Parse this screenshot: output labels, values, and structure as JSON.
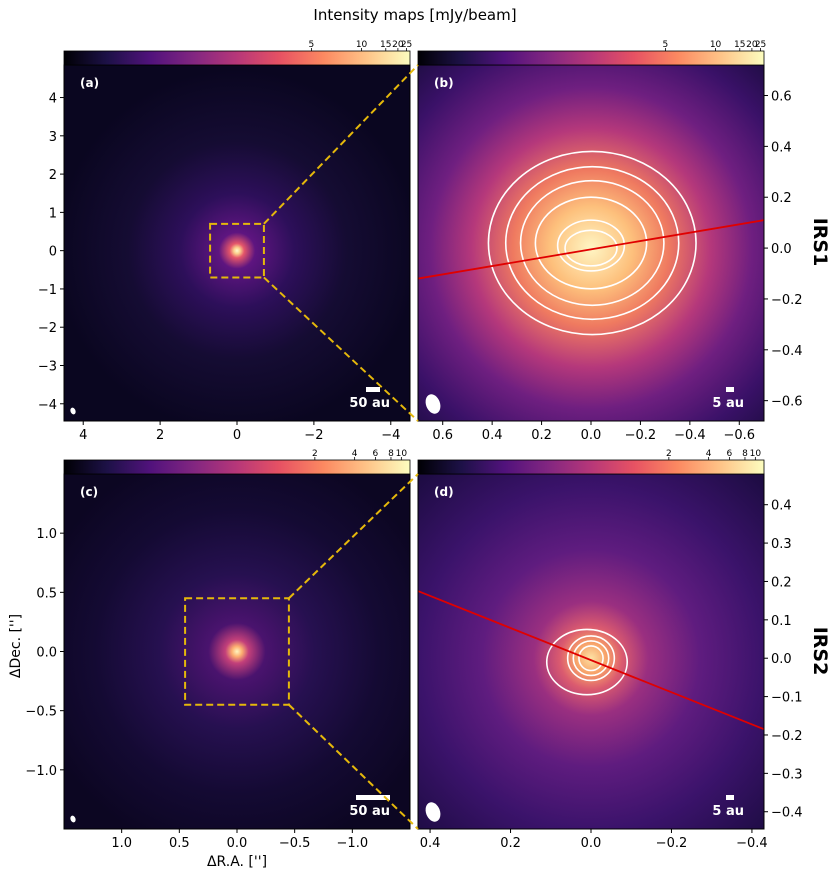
{
  "figure": {
    "title": "Intensity maps [mJy/beam]",
    "xlabel": "ΔR.A. ['']",
    "ylabel": "ΔDec. ['']",
    "row_labels": [
      "IRS1",
      "IRS2"
    ]
  },
  "colormap": {
    "name": "magma",
    "stops": [
      "#000004",
      "#1d1147",
      "#51127c",
      "#822681",
      "#b73779",
      "#e75263",
      "#fc8961",
      "#fec488",
      "#fcfdbf"
    ]
  },
  "chart_data": [
    {
      "id": "a",
      "type": "heatmap",
      "label": "(a)",
      "xlim": [
        4.5,
        -4.5
      ],
      "ylim": [
        -4.45,
        4.85
      ],
      "xticks": [
        4,
        2,
        0,
        -2,
        -4
      ],
      "xtick_labels": [
        "4",
        "2",
        "0",
        "−2",
        "−4"
      ],
      "yticks": [
        4,
        3,
        2,
        1,
        0,
        -1,
        -2,
        -3,
        -4
      ],
      "ytick_labels": [
        "4",
        "3",
        "2",
        "1",
        "0",
        "−1",
        "−2",
        "−3",
        "−4"
      ],
      "yaxis_side": "left",
      "show_xticklabels": true,
      "colorbar_ticks": [
        "5",
        "10",
        "15",
        "20",
        "25"
      ],
      "zoom_box": {
        "x": [
          0.7,
          -0.7
        ],
        "y": [
          -0.7,
          0.7
        ]
      },
      "scale_bar": "50 au",
      "source_center": [
        0,
        0
      ]
    },
    {
      "id": "b",
      "type": "heatmap",
      "label": "(b)",
      "xlim": [
        0.7,
        -0.7
      ],
      "ylim": [
        -0.68,
        0.72
      ],
      "xticks": [
        0.6,
        0.4,
        0.2,
        0.0,
        -0.2,
        -0.4,
        -0.6
      ],
      "xtick_labels": [
        "0.6",
        "0.4",
        "0.2",
        "0.0",
        "−0.2",
        "−0.4",
        "−0.6"
      ],
      "yticks": [
        0.6,
        0.4,
        0.2,
        0.0,
        -0.2,
        -0.4,
        -0.6
      ],
      "ytick_labels": [
        "0.6",
        "0.4",
        "0.2",
        "0.0",
        "−0.2",
        "−0.4",
        "−0.6"
      ],
      "yaxis_side": "right",
      "show_xticklabels": true,
      "colorbar_ticks": [
        "5",
        "10",
        "15",
        "20",
        "25"
      ],
      "scale_bar": "5 au",
      "source_center": [
        0,
        0
      ],
      "line": {
        "x": [
          0.7,
          -0.7
        ],
        "y": [
          -0.12,
          0.11
        ]
      },
      "contours": [
        {
          "cx": -0.005,
          "cy": 0.02,
          "rx": 0.42,
          "ry": 0.36
        },
        {
          "cx": -0.005,
          "cy": 0.02,
          "rx": 0.35,
          "ry": 0.3
        },
        {
          "cx": -0.005,
          "cy": 0.02,
          "rx": 0.29,
          "ry": 0.245
        },
        {
          "cx": 0.0,
          "cy": 0.02,
          "rx": 0.225,
          "ry": 0.18
        },
        {
          "cx": 0.0,
          "cy": 0.01,
          "rx": 0.135,
          "ry": 0.1
        },
        {
          "cx": 0.0,
          "cy": 0.0,
          "rx": 0.105,
          "ry": 0.07
        }
      ]
    },
    {
      "id": "c",
      "type": "heatmap",
      "label": "(c)",
      "xlim": [
        1.5,
        -1.5
      ],
      "ylim": [
        -1.5,
        1.5
      ],
      "xticks": [
        1.0,
        0.5,
        0.0,
        -0.5,
        -1.0
      ],
      "xtick_labels": [
        "1.0",
        "0.5",
        "0.0",
        "−0.5",
        "−1.0"
      ],
      "yticks": [
        1.0,
        0.5,
        0.0,
        -0.5,
        -1.0
      ],
      "ytick_labels": [
        "1.0",
        "0.5",
        "0.0",
        "−0.5",
        "−1.0"
      ],
      "yaxis_side": "left",
      "show_xticklabels": true,
      "colorbar_ticks": [
        "2",
        "4",
        "6",
        "8",
        "10"
      ],
      "zoom_box": {
        "x": [
          0.45,
          -0.45
        ],
        "y": [
          -0.45,
          0.45
        ]
      },
      "scale_bar": "50 au",
      "source_center": [
        0,
        0
      ]
    },
    {
      "id": "d",
      "type": "heatmap",
      "label": "(d)",
      "xlim": [
        0.43,
        -0.43
      ],
      "ylim": [
        -0.445,
        0.48
      ],
      "xticks": [
        0.4,
        0.2,
        0.0,
        -0.2,
        -0.4
      ],
      "xtick_labels": [
        "0.4",
        "0.2",
        "0.0",
        "−0.2",
        "−0.4"
      ],
      "yticks": [
        0.4,
        0.3,
        0.2,
        0.1,
        0.0,
        -0.1,
        -0.2,
        -0.3,
        -0.4
      ],
      "ytick_labels": [
        "0.4",
        "0.3",
        "0.2",
        "0.1",
        "0.0",
        "−0.1",
        "−0.2",
        "−0.3",
        "−0.4"
      ],
      "yaxis_side": "right",
      "show_xticklabels": true,
      "colorbar_ticks": [
        "2",
        "4",
        "6",
        "8",
        "10"
      ],
      "scale_bar": "5 au",
      "source_center": [
        0,
        0
      ],
      "line": {
        "x": [
          0.43,
          -0.43
        ],
        "y": [
          0.175,
          -0.185
        ]
      },
      "contours": [
        {
          "cx": 0.01,
          "cy": -0.01,
          "rx": 0.1,
          "ry": 0.085
        },
        {
          "cx": 0.0,
          "cy": 0.0,
          "rx": 0.058,
          "ry": 0.058
        },
        {
          "cx": 0.0,
          "cy": 0.0,
          "rx": 0.044,
          "ry": 0.045
        },
        {
          "cx": 0.0,
          "cy": 0.0,
          "rx": 0.03,
          "ry": 0.032
        }
      ]
    }
  ]
}
